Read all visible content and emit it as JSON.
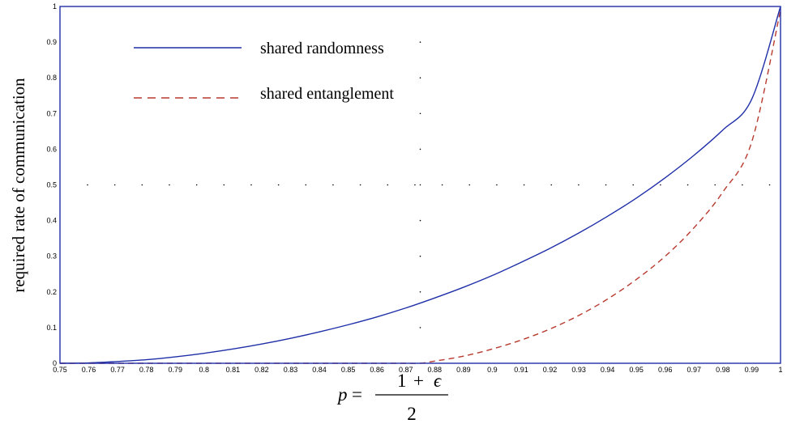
{
  "chart_data": {
    "type": "line",
    "title": "",
    "xlabel": {
      "lhs": "p",
      "eq": "=",
      "numerator_a": "1",
      "numerator_op": "+",
      "numerator_b": "ϵ",
      "denominator": "2"
    },
    "ylabel": "required rate of communication",
    "xlim": [
      0.75,
      1.0
    ],
    "ylim": [
      0,
      1
    ],
    "x_ticks": [
      "0.75",
      "0.76",
      "0.77",
      "0.78",
      "0.79",
      "0.8",
      "0.81",
      "0.82",
      "0.83",
      "0.84",
      "0.85",
      "0.86",
      "0.87",
      "0.88",
      "0.89",
      "0.9",
      "0.91",
      "0.92",
      "0.93",
      "0.94",
      "0.95",
      "0.96",
      "0.97",
      "0.98",
      "0.99",
      "1"
    ],
    "y_ticks": [
      "0",
      "0.1",
      "0.2",
      "0.3",
      "0.4",
      "0.5",
      "0.6",
      "0.7",
      "0.8",
      "0.9",
      "1"
    ],
    "grid": "dotted",
    "legend_position": "top-left",
    "series": [
      {
        "name": "shared randomness",
        "color": "#1f2fa8",
        "style": "solid",
        "x": [
          0.75,
          0.76,
          0.77,
          0.78,
          0.79,
          0.8,
          0.81,
          0.82,
          0.83,
          0.84,
          0.85,
          0.86,
          0.87,
          0.88,
          0.89,
          0.9,
          0.91,
          0.92,
          0.93,
          0.94,
          0.95,
          0.96,
          0.97,
          0.98,
          0.99,
          1.0
        ],
        "y": [
          0.0,
          0.001,
          0.005,
          0.01,
          0.018,
          0.028,
          0.04,
          0.054,
          0.07,
          0.088,
          0.108,
          0.13,
          0.155,
          0.183,
          0.213,
          0.246,
          0.283,
          0.322,
          0.365,
          0.412,
          0.463,
          0.52,
          0.583,
          0.654,
          0.74,
          1.0
        ]
      },
      {
        "name": "shared entanglement",
        "color": "#b83a2e",
        "style": "dashed",
        "x": [
          0.75,
          0.76,
          0.77,
          0.78,
          0.79,
          0.8,
          0.81,
          0.82,
          0.83,
          0.84,
          0.85,
          0.86,
          0.87,
          0.875,
          0.88,
          0.89,
          0.9,
          0.91,
          0.92,
          0.93,
          0.94,
          0.95,
          0.96,
          0.97,
          0.98,
          0.99,
          1.0
        ],
        "y": [
          0,
          0,
          0,
          0,
          0,
          0,
          0,
          0,
          0,
          0,
          0,
          0,
          0,
          0,
          0.006,
          0.02,
          0.04,
          0.065,
          0.096,
          0.134,
          0.18,
          0.235,
          0.3,
          0.38,
          0.48,
          0.62,
          0.99
        ]
      }
    ]
  }
}
